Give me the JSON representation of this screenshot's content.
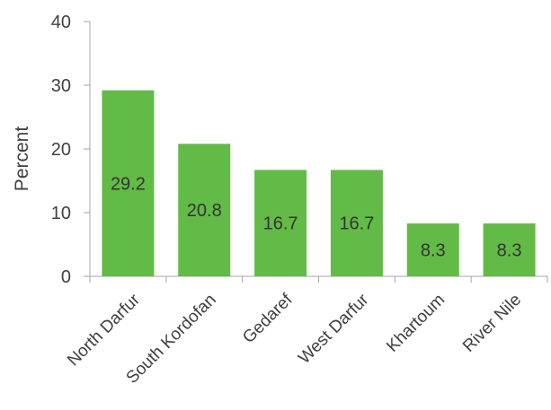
{
  "chart_data": {
    "type": "bar",
    "categories": [
      "North Darfur",
      "South Kordofan",
      "Gedaref",
      "West Darfur",
      "Khartoum",
      "River Nile"
    ],
    "values": [
      29.2,
      20.8,
      16.7,
      16.7,
      8.3,
      8.3
    ],
    "value_labels": [
      "29.2",
      "20.8",
      "16.7",
      "16.7",
      "8.3",
      "8.3"
    ],
    "ylabel": "Percent",
    "ylim": [
      0,
      40
    ],
    "yticks": [
      0,
      10,
      20,
      30,
      40
    ],
    "grid": false,
    "bar_color": "#62bb46",
    "axis_color": "#a6a6a6"
  }
}
